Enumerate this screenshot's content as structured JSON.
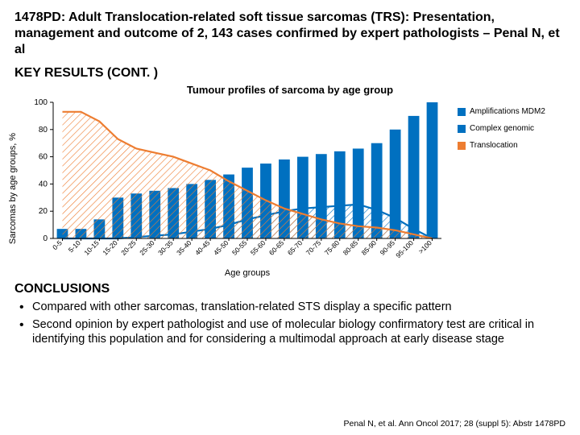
{
  "title": "1478PD: Adult Translocation-related soft tissue sarcomas (TRS): Presentation, management and outcome of 2, 143 cases confirmed by expert pathologists – Penal N, et al",
  "subtitle": "KEY RESULTS (CONT. )",
  "chart": {
    "type": "bar+line",
    "title": "Tumour profiles of sarcoma by age group",
    "x_label": "Age groups",
    "y_label": "Sarcomas by age groups, %",
    "ylim": [
      0,
      100
    ],
    "ytick_step": 20,
    "background_color": "#ffffff",
    "axis_color": "#000000",
    "categories": [
      "0-5",
      "5-10",
      "10-15",
      "15-20",
      "20-25",
      "25-30",
      "30-35",
      "35-40",
      "40-45",
      "45-50",
      "50-55",
      "55-60",
      "60-65",
      "65-70",
      "70-75",
      "75-80",
      "80-85",
      "85-90",
      "90-95",
      "95-100",
      ">100"
    ],
    "series": [
      {
        "name": "Amplifications MDM2",
        "type": "line",
        "color": "#0070c0",
        "values": [
          0,
          0,
          0,
          0,
          1,
          2,
          3,
          5,
          7,
          10,
          14,
          17,
          20,
          22,
          23,
          24,
          25,
          21,
          15,
          7,
          0
        ]
      },
      {
        "name": "Complex genomic",
        "type": "bar",
        "color": "#0070c0",
        "values": [
          7,
          7,
          14,
          30,
          33,
          35,
          37,
          40,
          43,
          47,
          52,
          55,
          58,
          60,
          62,
          64,
          66,
          70,
          80,
          90,
          100
        ]
      },
      {
        "name": "Translocation",
        "type": "line",
        "color": "#ed7d31",
        "values": [
          93,
          93,
          86,
          73,
          66,
          63,
          60,
          55,
          50,
          42,
          35,
          28,
          22,
          18,
          14,
          11,
          9,
          8,
          6,
          3,
          0
        ]
      }
    ],
    "bar_width_ratio": 0.6,
    "line_width": 2.2,
    "title_fontsize": 13,
    "label_fontsize": 11,
    "tick_fontsize": 10,
    "xtick_rotation": -45
  },
  "legend": {
    "items": [
      {
        "label": "Amplifications MDM2",
        "color": "#0070c0"
      },
      {
        "label": "Complex genomic",
        "color": "#0070c0"
      },
      {
        "label": "Translocation",
        "color": "#ed7d31"
      }
    ]
  },
  "conclusions": {
    "heading": "CONCLUSIONS",
    "bullets": [
      "Compared with other sarcomas, translation-related STS display a specific pattern",
      "Second opinion by expert pathologist and use of molecular biology confirmatory test are critical in identifying this population and for considering a multimodal approach at early disease stage"
    ]
  },
  "citation": "Penal N, et al. Ann Oncol 2017; 28 (suppl 5): Abstr 1478PD"
}
